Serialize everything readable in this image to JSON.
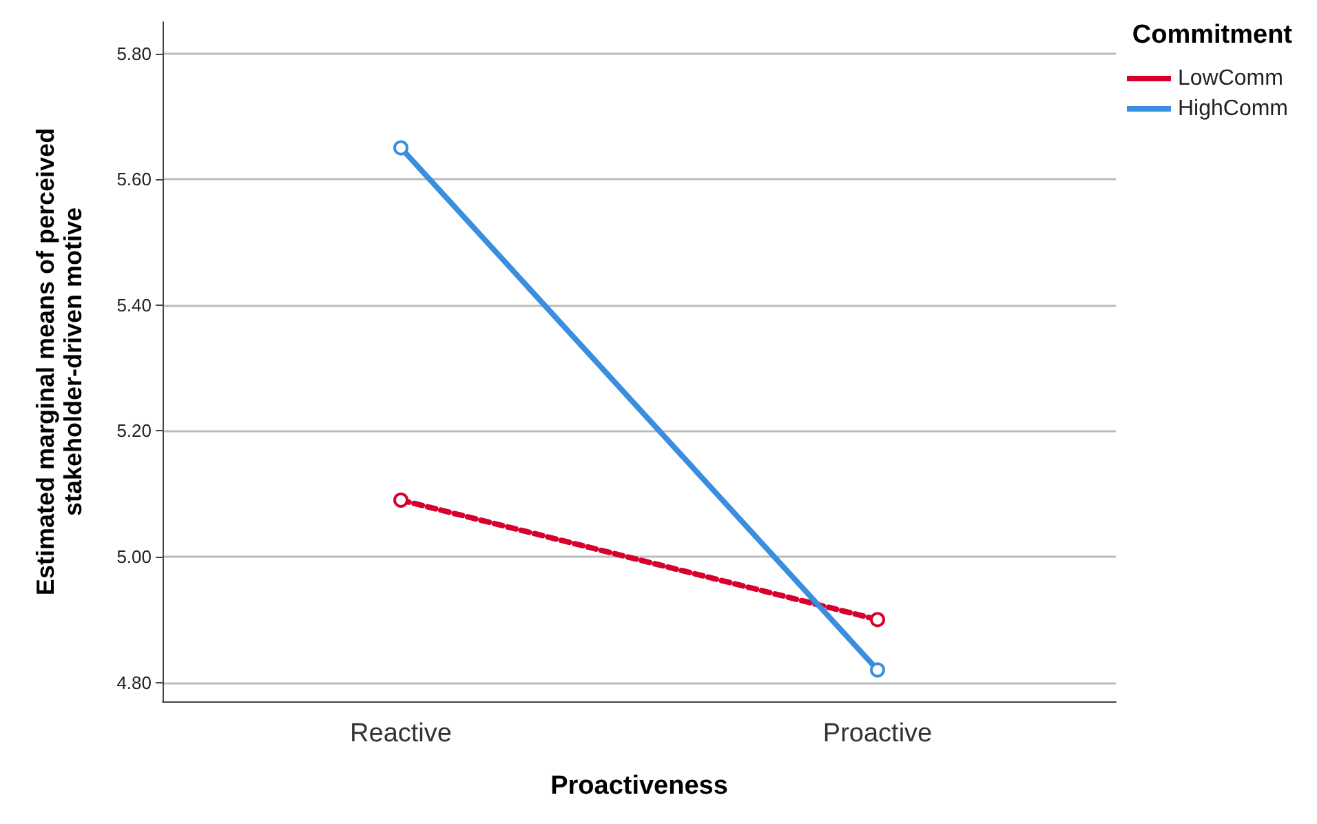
{
  "chart_data": {
    "type": "line",
    "xlabel": "Proactiveness",
    "ylabel": "Estimated marginal means of perceived\nstakeholder-driven motive",
    "legend_title": "Commitment",
    "categories": [
      "Reactive",
      "Proactive"
    ],
    "series": [
      {
        "name": "LowComm",
        "color": "#d6002b",
        "line_style": "dashed",
        "values": [
          5.09,
          4.9
        ]
      },
      {
        "name": "HighComm",
        "color": "#3a8ee0",
        "line_style": "solid",
        "values": [
          5.65,
          4.82
        ]
      }
    ],
    "ylim": [
      4.77,
      5.85
    ],
    "yticks": [
      {
        "value": 4.8,
        "label": "4.80"
      },
      {
        "value": 5.0,
        "label": "5.00"
      },
      {
        "value": 5.2,
        "label": "5.20"
      },
      {
        "value": 5.4,
        "label": "5.40"
      },
      {
        "value": 5.6,
        "label": "5.60"
      },
      {
        "value": 5.8,
        "label": "5.80"
      }
    ],
    "grid": "y",
    "legend": "top right",
    "marker": "circle"
  }
}
